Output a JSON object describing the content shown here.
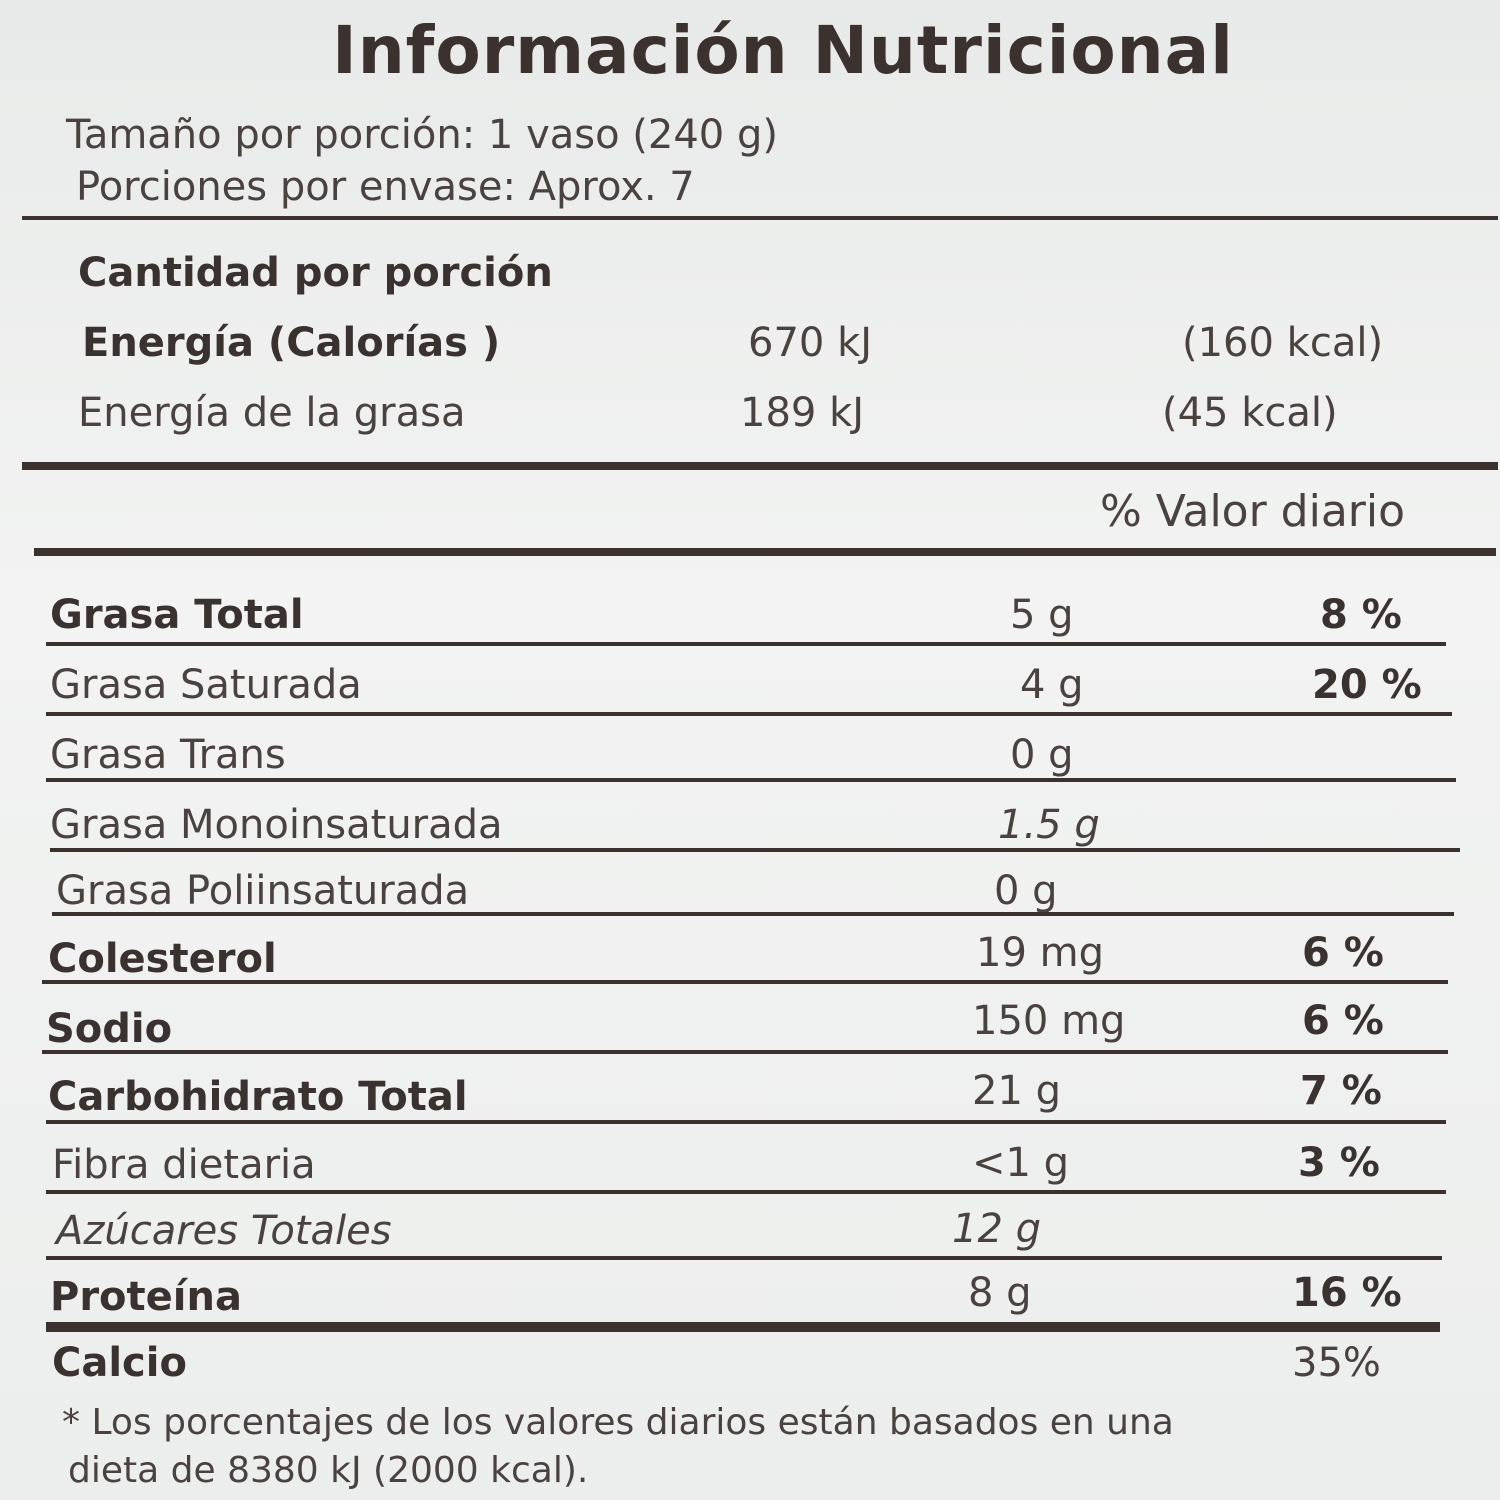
{
  "title": "Información Nutricional",
  "serving": {
    "size": "Tamaño por porción: 1 vaso (240 g)",
    "per_container": "Porciones por envase: Aprox. 7"
  },
  "amount_header": "Cantidad por porción",
  "energy": [
    {
      "name": "Energía  (Calorías )",
      "kj": "670 kJ",
      "kcal": "(160 kcal)"
    },
    {
      "name": "Energía de la grasa",
      "kj": "189 kJ",
      "kcal": "(45 kcal)"
    }
  ],
  "dv_header": "% Valor diario",
  "nutrients": [
    {
      "name": "Grasa Total",
      "amount": "5 g",
      "dv": "8 %"
    },
    {
      "name": "Grasa Saturada",
      "amount": "4 g",
      "dv": "20 %"
    },
    {
      "name": "Grasa Trans",
      "amount": "0 g",
      "dv": ""
    },
    {
      "name": "Grasa Monoinsaturada",
      "amount": "1.5 g",
      "dv": ""
    },
    {
      "name": "Grasa Poliinsaturada",
      "amount": "0 g",
      "dv": ""
    },
    {
      "name": "Colesterol",
      "amount": "19 mg",
      "dv": "6 %"
    },
    {
      "name": "Sodio",
      "amount": "150 mg",
      "dv": "6 %"
    },
    {
      "name": "Carbohidrato Total",
      "amount": "21 g",
      "dv": "7 %"
    },
    {
      "name": "Fibra dietaria",
      "amount": "<1 g",
      "dv": "3 %"
    },
    {
      "name": "Azúcares Totales",
      "amount": "12 g",
      "dv": ""
    },
    {
      "name": "Proteína",
      "amount": "8 g",
      "dv": "16 %"
    }
  ],
  "calcium": {
    "name": "Calcio",
    "dv": "35%"
  },
  "footnote": {
    "line1": "* Los  porcentajes  de  los valores  diarios  están basados en una",
    "line2": "dieta  de 8380 kJ (2000  kcal)."
  }
}
